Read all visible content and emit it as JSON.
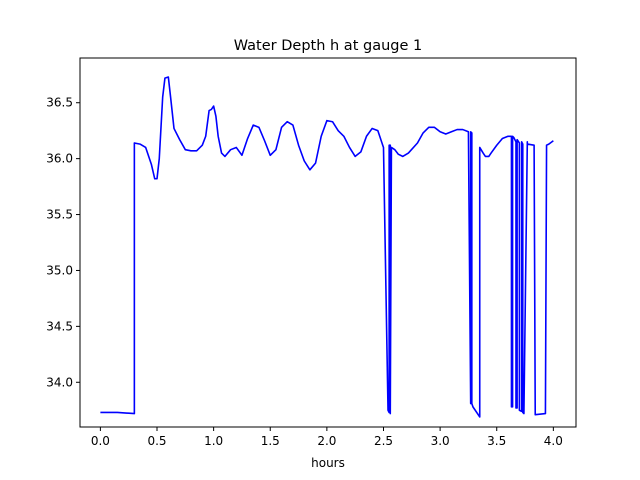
{
  "chart_data": {
    "type": "line",
    "title": "Water Depth h at gauge 1",
    "xlabel": "hours",
    "ylabel": "",
    "xlim": [
      -0.18,
      4.2
    ],
    "ylim": [
      33.6,
      36.9
    ],
    "xticks": [
      0.0,
      0.5,
      1.0,
      1.5,
      2.0,
      2.5,
      3.0,
      3.5,
      4.0
    ],
    "xtick_labels": [
      "0.0",
      "0.5",
      "1.0",
      "1.5",
      "2.0",
      "2.5",
      "3.0",
      "3.5",
      "4.0"
    ],
    "yticks": [
      34.0,
      34.5,
      35.0,
      35.5,
      36.0,
      36.5
    ],
    "ytick_labels": [
      "34.0",
      "34.5",
      "35.0",
      "35.5",
      "36.0",
      "36.5"
    ],
    "grid": false,
    "series": [
      {
        "color": "#0000ff",
        "x": [
          0.0,
          0.15,
          0.3,
          0.3,
          0.35,
          0.4,
          0.45,
          0.48,
          0.5,
          0.52,
          0.55,
          0.57,
          0.6,
          0.62,
          0.65,
          0.7,
          0.75,
          0.8,
          0.85,
          0.9,
          0.93,
          0.96,
          0.98,
          1.0,
          1.02,
          1.04,
          1.07,
          1.1,
          1.15,
          1.2,
          1.25,
          1.3,
          1.35,
          1.4,
          1.45,
          1.5,
          1.55,
          1.6,
          1.65,
          1.7,
          1.75,
          1.8,
          1.85,
          1.9,
          1.95,
          2.0,
          2.05,
          2.1,
          2.15,
          2.2,
          2.25,
          2.3,
          2.35,
          2.4,
          2.45,
          2.5,
          2.54,
          2.55,
          2.55,
          2.56,
          2.56,
          2.57,
          2.6,
          2.63,
          2.67,
          2.72,
          2.8,
          2.85,
          2.9,
          2.95,
          3.0,
          3.05,
          3.1,
          3.15,
          3.2,
          3.25,
          3.27,
          3.27,
          3.28,
          3.28,
          3.29,
          3.35,
          3.35,
          3.38,
          3.4,
          3.43,
          3.45,
          3.5,
          3.55,
          3.6,
          3.63,
          3.63,
          3.64,
          3.64,
          3.65,
          3.67,
          3.67,
          3.68,
          3.68,
          3.7,
          3.7,
          3.72,
          3.72,
          3.73,
          3.73,
          3.74,
          3.77,
          3.77,
          3.83,
          3.84,
          3.84,
          3.93,
          3.94,
          3.96,
          4.0
        ],
        "y": [
          33.73,
          33.73,
          33.72,
          36.14,
          36.13,
          36.1,
          35.95,
          35.82,
          35.82,
          36.0,
          36.55,
          36.72,
          36.73,
          36.55,
          36.27,
          36.17,
          36.08,
          36.07,
          36.07,
          36.12,
          36.2,
          36.43,
          36.44,
          36.47,
          36.38,
          36.2,
          36.05,
          36.02,
          36.08,
          36.1,
          36.03,
          36.18,
          36.3,
          36.28,
          36.16,
          36.03,
          36.08,
          36.28,
          36.33,
          36.3,
          36.12,
          35.98,
          35.9,
          35.96,
          36.2,
          36.34,
          36.33,
          36.25,
          36.2,
          36.1,
          36.02,
          36.06,
          36.2,
          36.27,
          36.25,
          36.1,
          33.75,
          33.73,
          36.12,
          36.12,
          33.72,
          36.1,
          36.08,
          36.04,
          36.02,
          36.05,
          36.14,
          36.23,
          36.28,
          36.28,
          36.24,
          36.22,
          36.24,
          36.26,
          36.26,
          36.24,
          33.81,
          36.24,
          36.23,
          33.81,
          33.78,
          33.69,
          36.1,
          36.05,
          36.02,
          36.02,
          36.05,
          36.12,
          36.18,
          36.2,
          36.2,
          33.78,
          33.78,
          36.2,
          36.19,
          36.15,
          33.77,
          33.77,
          36.17,
          36.14,
          33.75,
          33.74,
          36.15,
          36.13,
          33.73,
          33.72,
          36.15,
          36.13,
          36.12,
          33.71,
          33.71,
          33.72,
          36.12,
          36.13,
          36.16
        ]
      }
    ]
  }
}
